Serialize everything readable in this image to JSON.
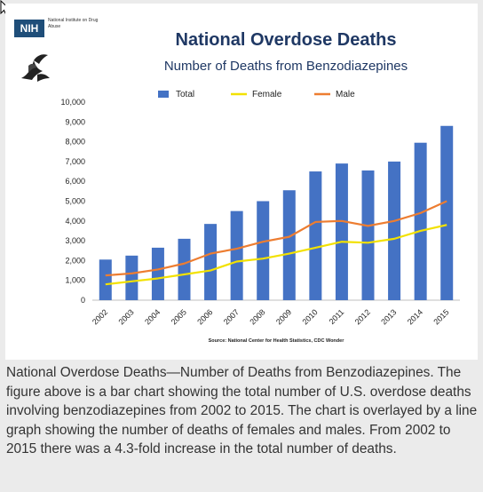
{
  "logo": {
    "agency_abbr": "NIH",
    "agency_name": "National Institute on Drug Abuse"
  },
  "chart_data": {
    "type": "bar",
    "title": "National Overdose Deaths",
    "subtitle": "Number of Deaths from Benzodiazepines",
    "categories": [
      "2002",
      "2003",
      "2004",
      "2005",
      "2006",
      "2007",
      "2008",
      "2009",
      "2010",
      "2011",
      "2012",
      "2013",
      "2014",
      "2015"
    ],
    "series": [
      {
        "name": "Total",
        "kind": "bar",
        "color": "#4472c4",
        "values": [
          2050,
          2250,
          2650,
          3100,
          3850,
          4500,
          5000,
          5550,
          6500,
          6900,
          6550,
          7000,
          7950,
          8800
        ]
      },
      {
        "name": "Female",
        "kind": "line",
        "color": "#f2e100",
        "values": [
          800,
          950,
          1100,
          1300,
          1500,
          1950,
          2100,
          2350,
          2650,
          2950,
          2900,
          3100,
          3500,
          3800
        ]
      },
      {
        "name": "Male",
        "kind": "line",
        "color": "#ed7d31",
        "values": [
          1250,
          1350,
          1550,
          1850,
          2350,
          2600,
          2950,
          3200,
          3950,
          4000,
          3750,
          4000,
          4400,
          5000
        ]
      }
    ],
    "y_ticks": [
      "0",
      "1,000",
      "2,000",
      "3,000",
      "4,000",
      "5,000",
      "6,000",
      "7,000",
      "8,000",
      "9,000",
      "10,000"
    ],
    "ylim": [
      0,
      10000
    ],
    "legend_position": "top",
    "source": "Source: National Center for Health Statistics, CDC Wonder"
  },
  "caption": "National Overdose Deaths—Number of Deaths from Benzodiazepines. The figure above is a bar chart showing the total number of U.S. overdose deaths involving benzodiazepines from 2002 to 2015.  The chart is overlayed by a line graph showing the number of deaths of females and males. From 2002 to 2015 there was a 4.3-fold increase in the total number of deaths."
}
